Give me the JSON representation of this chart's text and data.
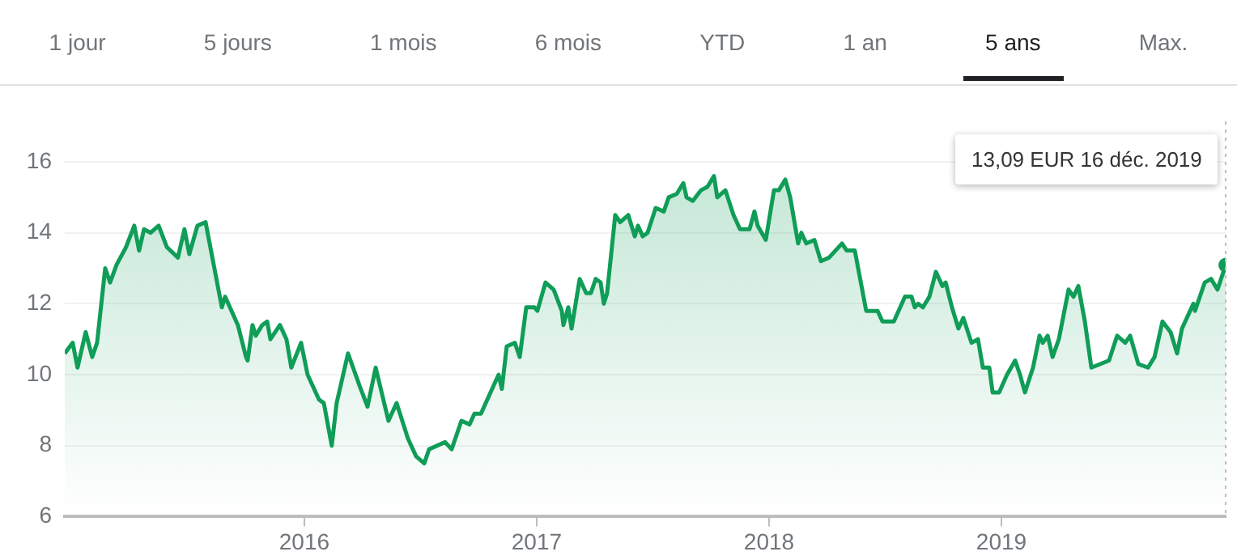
{
  "chart_data": {
    "type": "area",
    "xlim": [
      2014.969,
      2019.965
    ],
    "xticks": [
      2016,
      2017,
      2018,
      2019
    ],
    "ylim": [
      6,
      16
    ],
    "yticks": [
      6,
      8,
      10,
      12,
      14,
      16
    ],
    "grid": "y",
    "marker": "none",
    "line_style": "solid",
    "series": [
      {
        "color": "#0f9d58",
        "x": [
          2014.969,
          2015.003,
          2015.024,
          2015.059,
          2015.087,
          2015.108,
          2015.143,
          2015.164,
          2015.192,
          2015.233,
          2015.268,
          2015.289,
          2015.31,
          2015.338,
          2015.373,
          2015.408,
          2015.456,
          2015.484,
          2015.505,
          2015.54,
          2015.575,
          2015.61,
          2015.645,
          2015.659,
          2015.714,
          2015.749,
          2015.756,
          2015.777,
          2015.791,
          2015.819,
          2015.84,
          2015.854,
          2015.895,
          2015.923,
          2015.944,
          2015.986,
          2016.014,
          2016.063,
          2016.084,
          2016.118,
          2016.139,
          2016.188,
          2016.237,
          2016.272,
          2016.307,
          2016.362,
          2016.397,
          2016.446,
          2016.481,
          2016.516,
          2016.537,
          2016.606,
          2016.634,
          2016.676,
          2016.711,
          2016.732,
          2016.76,
          2016.815,
          2016.836,
          2016.85,
          2016.871,
          2016.906,
          2016.927,
          2016.955,
          2016.99,
          2017.003,
          2017.038,
          2017.073,
          2017.108,
          2017.115,
          2017.136,
          2017.15,
          2017.185,
          2017.213,
          2017.233,
          2017.254,
          2017.275,
          2017.289,
          2017.303,
          2017.338,
          2017.359,
          2017.394,
          2017.422,
          2017.436,
          2017.456,
          2017.477,
          2017.512,
          2017.547,
          2017.568,
          2017.603,
          2017.631,
          2017.645,
          2017.672,
          2017.707,
          2017.735,
          2017.763,
          2017.777,
          2017.812,
          2017.847,
          2017.875,
          2017.895,
          2017.916,
          2017.937,
          2017.951,
          2017.986,
          2018.021,
          2018.042,
          2018.07,
          2018.091,
          2018.125,
          2018.139,
          2018.16,
          2018.195,
          2018.223,
          2018.258,
          2018.314,
          2018.334,
          2018.369,
          2018.418,
          2018.467,
          2018.488,
          2018.537,
          2018.585,
          2018.613,
          2018.627,
          2018.641,
          2018.662,
          2018.69,
          2018.718,
          2018.746,
          2018.76,
          2018.787,
          2018.815,
          2018.836,
          2018.871,
          2018.899,
          2018.92,
          2018.948,
          2018.962,
          2018.99,
          2019.024,
          2019.059,
          2019.08,
          2019.101,
          2019.136,
          2019.164,
          2019.178,
          2019.199,
          2019.22,
          2019.247,
          2019.289,
          2019.31,
          2019.331,
          2019.359,
          2019.387,
          2019.463,
          2019.498,
          2019.533,
          2019.554,
          2019.589,
          2019.631,
          2019.659,
          2019.693,
          2019.728,
          2019.756,
          2019.777,
          2019.826,
          2019.833,
          2019.875,
          2019.902,
          2019.93,
          2019.965
        ],
        "values": [
          10.6,
          10.9,
          10.2,
          11.2,
          10.5,
          10.9,
          13.0,
          12.6,
          13.1,
          13.6,
          14.2,
          13.5,
          14.1,
          14.0,
          14.2,
          13.6,
          13.3,
          14.1,
          13.4,
          14.2,
          14.3,
          13.1,
          11.9,
          12.2,
          11.4,
          10.5,
          10.4,
          11.4,
          11.1,
          11.4,
          11.5,
          11.0,
          11.4,
          11.0,
          10.2,
          10.9,
          10.0,
          9.3,
          9.2,
          8.0,
          9.2,
          10.6,
          9.7,
          9.1,
          10.2,
          8.7,
          9.2,
          8.2,
          7.7,
          7.5,
          7.9,
          8.1,
          7.9,
          8.7,
          8.6,
          8.9,
          8.9,
          9.7,
          10.0,
          9.6,
          10.8,
          10.9,
          10.5,
          11.9,
          11.9,
          11.8,
          12.6,
          12.4,
          11.8,
          11.4,
          11.9,
          11.3,
          12.7,
          12.3,
          12.3,
          12.7,
          12.6,
          12.0,
          12.3,
          14.5,
          14.3,
          14.5,
          13.9,
          14.2,
          13.9,
          14.0,
          14.7,
          14.6,
          15.0,
          15.1,
          15.4,
          15.0,
          14.9,
          15.2,
          15.3,
          15.6,
          15.0,
          15.2,
          14.5,
          14.1,
          14.1,
          14.1,
          14.6,
          14.2,
          13.8,
          15.2,
          15.2,
          15.5,
          15.0,
          13.7,
          14.0,
          13.7,
          13.8,
          13.2,
          13.3,
          13.7,
          13.5,
          13.5,
          11.8,
          11.8,
          11.5,
          11.5,
          12.2,
          12.2,
          11.9,
          12.0,
          11.9,
          12.2,
          12.9,
          12.5,
          12.6,
          11.9,
          11.3,
          11.6,
          10.9,
          11.0,
          10.2,
          10.2,
          9.5,
          9.5,
          10.0,
          10.4,
          10.0,
          9.5,
          10.2,
          11.1,
          10.9,
          11.1,
          10.5,
          11.0,
          12.4,
          12.2,
          12.5,
          11.5,
          10.2,
          10.4,
          11.1,
          10.9,
          11.1,
          10.3,
          10.2,
          10.5,
          11.5,
          11.2,
          10.6,
          11.3,
          12.0,
          11.8,
          12.6,
          12.7,
          12.4,
          13.09
        ]
      }
    ],
    "ref_lines": [
      {
        "axis": "x",
        "value": 2019.965,
        "label": null,
        "color": "#bdbdbd",
        "line_style": "dotted"
      }
    ],
    "annotations": [
      "1 jour",
      "5 jours",
      "1 mois",
      "6 mois",
      "YTD",
      "1 an",
      "5 ans",
      "Max.",
      "13,09 EUR  16 déc. 2019"
    ]
  }
}
